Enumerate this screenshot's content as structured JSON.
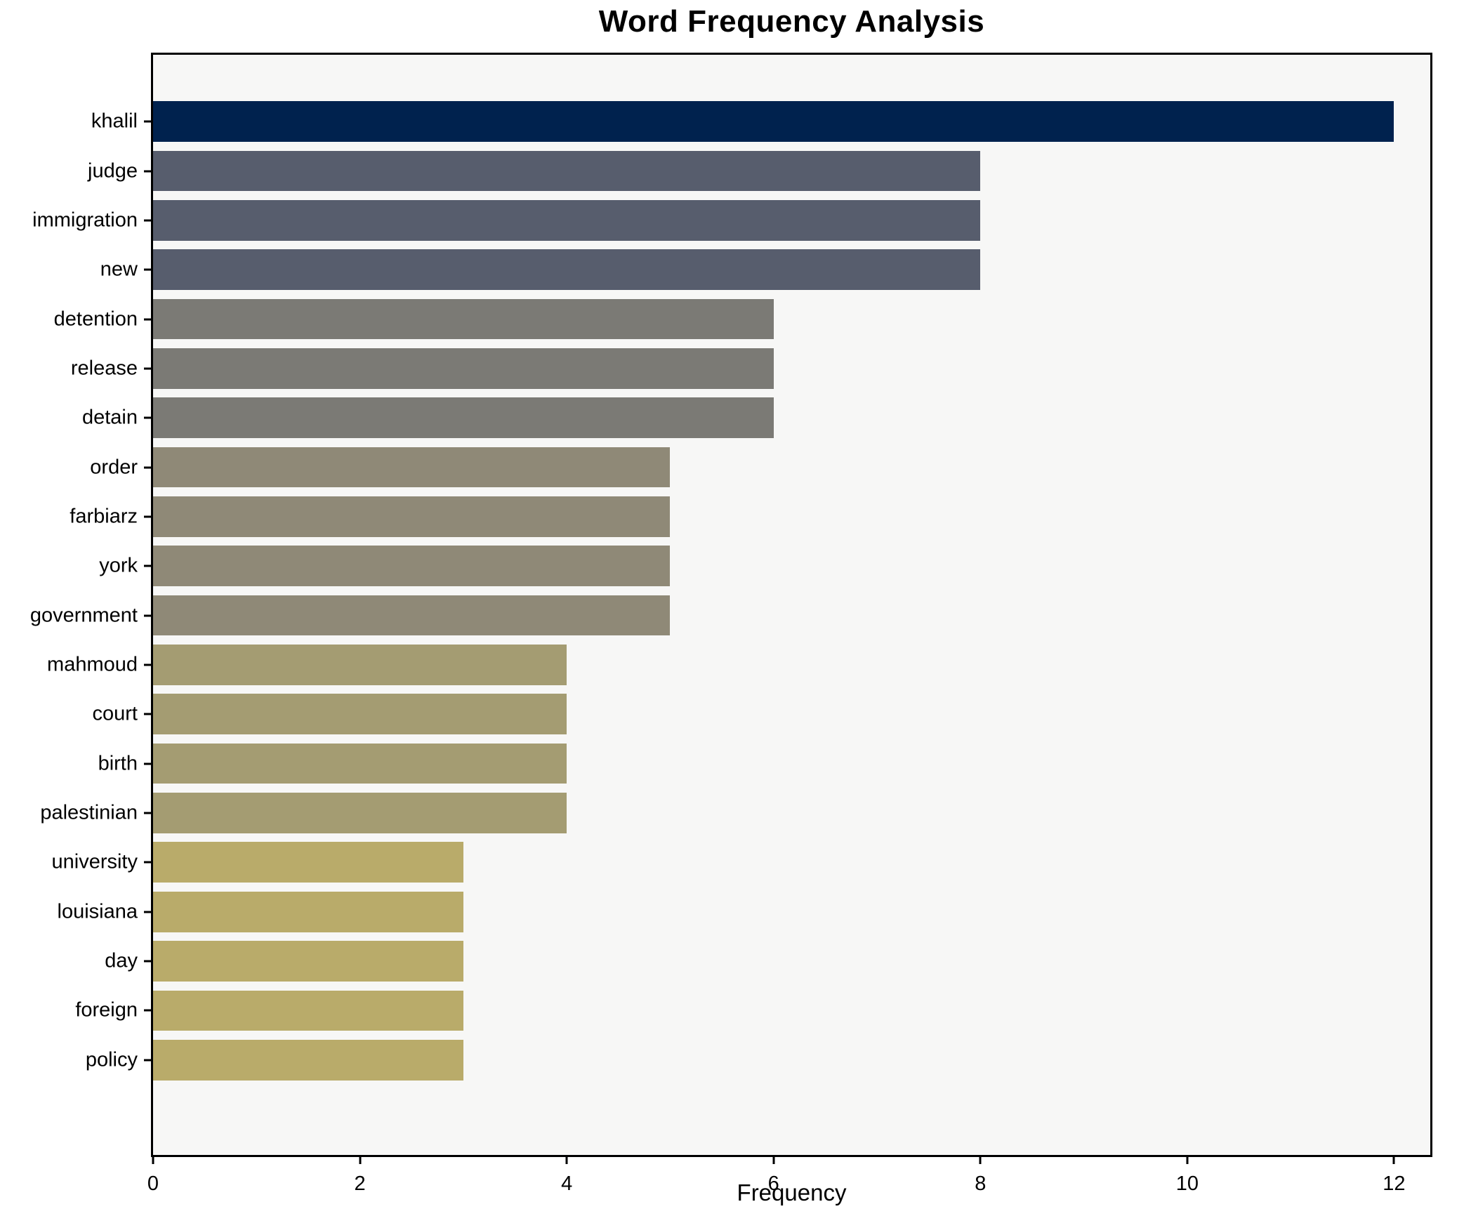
{
  "chart_data": {
    "type": "bar",
    "orientation": "horizontal",
    "title": "Word Frequency Analysis",
    "xlabel": "Frequency",
    "ylabel": "",
    "categories": [
      "khalil",
      "judge",
      "immigration",
      "new",
      "detention",
      "release",
      "detain",
      "order",
      "farbiarz",
      "york",
      "government",
      "mahmoud",
      "court",
      "birth",
      "palestinian",
      "university",
      "louisiana",
      "day",
      "foreign",
      "policy"
    ],
    "values": [
      12,
      8,
      8,
      8,
      6,
      6,
      6,
      5,
      5,
      5,
      5,
      4,
      4,
      4,
      4,
      3,
      3,
      3,
      3,
      3
    ],
    "bar_colors": [
      "#00224e",
      "#575d6d",
      "#575d6d",
      "#575d6d",
      "#7b7a75",
      "#7b7a75",
      "#7b7a75",
      "#8f8977",
      "#8f8977",
      "#8f8977",
      "#8f8977",
      "#a49c72",
      "#a49c72",
      "#a49c72",
      "#a49c72",
      "#b9ab6a",
      "#b9ab6a",
      "#b9ab6a",
      "#b9ab6a",
      "#b9ab6a"
    ],
    "xticks": [
      0,
      2,
      4,
      6,
      8,
      10,
      12
    ],
    "xlim": [
      0,
      12.35
    ],
    "grid": false,
    "legend": false,
    "plot_background": "#f7f7f6",
    "spine_color": "#000000"
  }
}
